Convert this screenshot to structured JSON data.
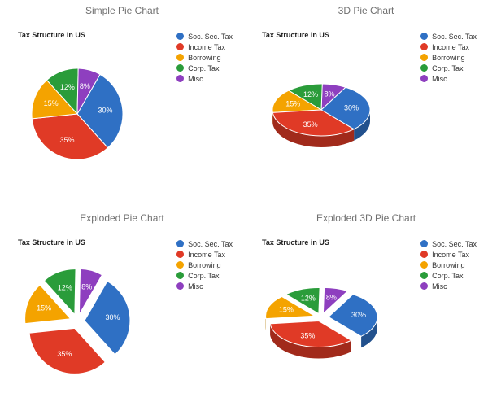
{
  "background_color": "#ffffff",
  "title_color": "#707070",
  "title_fontsize": 12,
  "subtitle_fontsize": 9,
  "subtitle_fontweight": "bold",
  "subtitle_color": "#222222",
  "legend_fontsize": 9,
  "pct_label_fontsize": 9,
  "pct_label_color": "#ffffff",
  "series": {
    "labels": [
      "Soc. Sec. Tax",
      "Income Tax",
      "Borrowing",
      "Corp. Tax",
      "Misc"
    ],
    "values": [
      30,
      35,
      15,
      12,
      8
    ],
    "value_labels": [
      "30%",
      "35%",
      "15%",
      "12%",
      "8%"
    ],
    "colors": [
      "#2f70c4",
      "#e03a26",
      "#f4a300",
      "#2a9c3a",
      "#8e3fbf"
    ]
  },
  "panels": [
    {
      "id": "simple",
      "title": "Simple Pie Chart",
      "subtitle": "Tax Structure in US",
      "style": "flat",
      "exploded": false
    },
    {
      "id": "three_d",
      "title": "3D Pie Chart",
      "subtitle": "Tax Structure in US",
      "style": "3d",
      "exploded": false
    },
    {
      "id": "exploded",
      "title": "Exploded Pie Chart",
      "subtitle": "Tax Structure in US",
      "style": "flat",
      "exploded": true
    },
    {
      "id": "exploded3d",
      "title": "Exploded 3D Pie Chart",
      "subtitle": "Tax Structure in US",
      "style": "3d",
      "exploded": true
    }
  ],
  "geometry": {
    "flat_center": [
      95,
      120
    ],
    "flat_radius": 56,
    "threeD_center": [
      95,
      115
    ],
    "threeD_rx": 60,
    "threeD_ry": 32,
    "threeD_depth": 14,
    "explode_offset": 9,
    "label_r_factor": 0.62,
    "start_angle_deg": -60,
    "side_darken": 0.72
  }
}
